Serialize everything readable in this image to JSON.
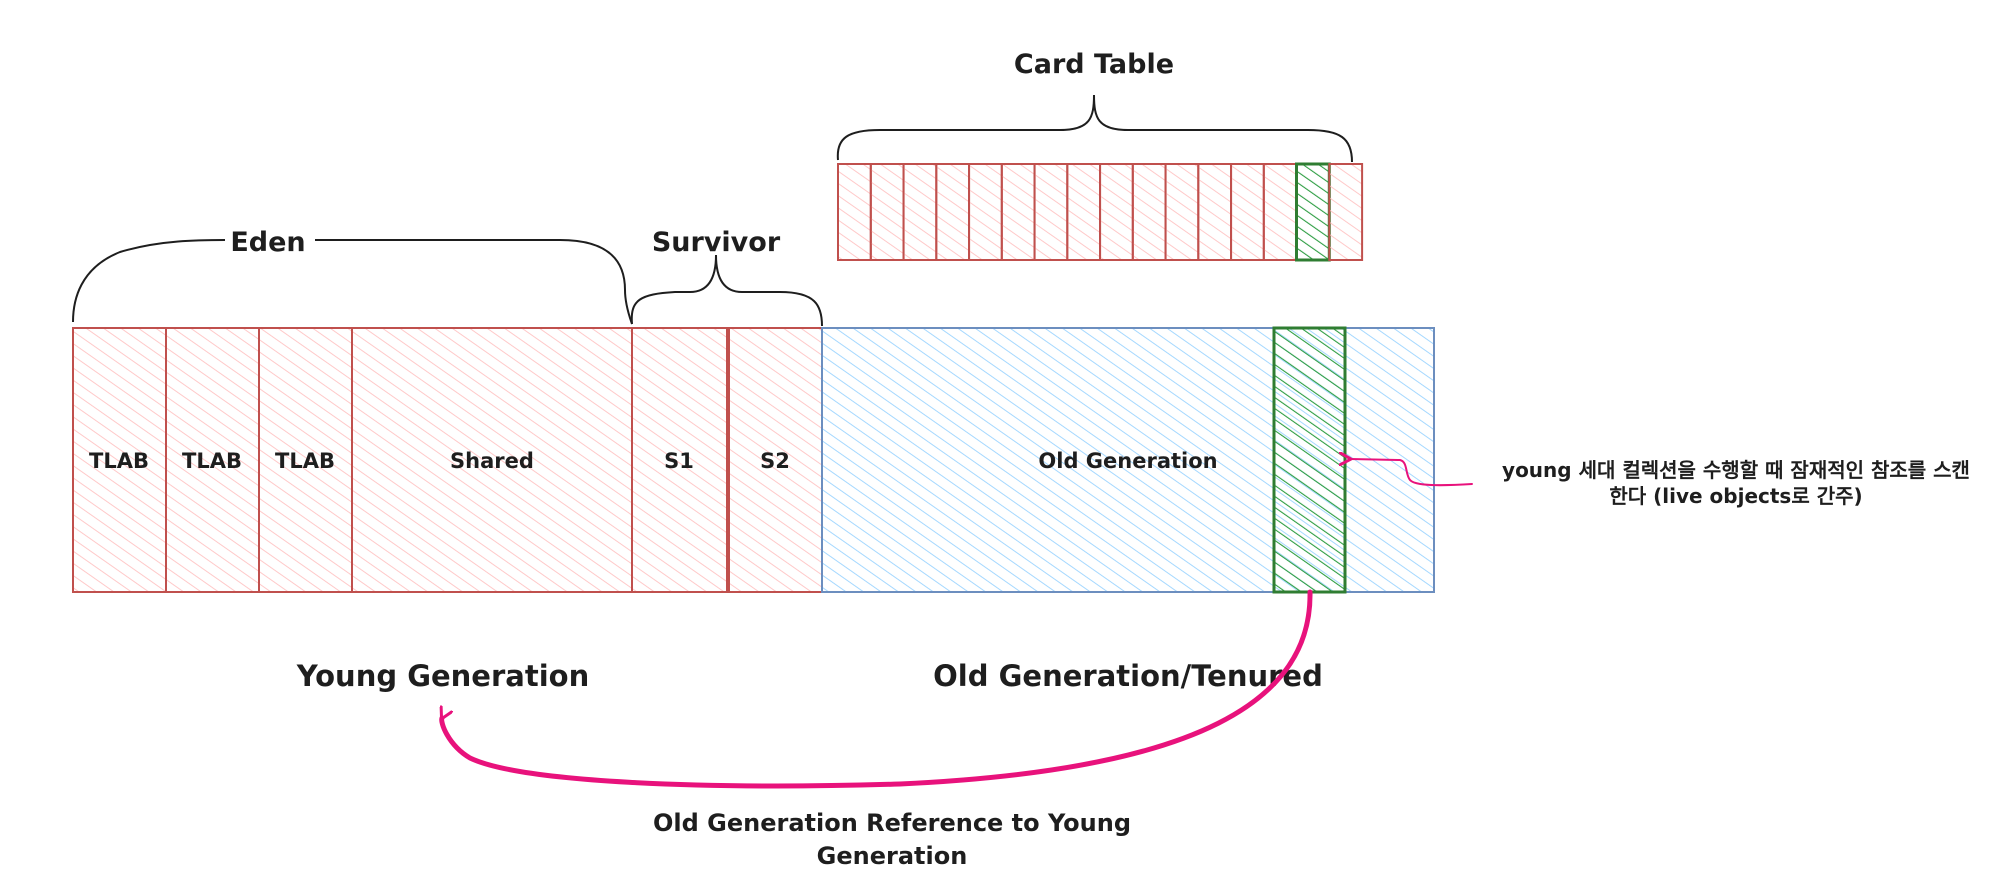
{
  "diagram": {
    "card_table": {
      "label": "Card Table",
      "card_count": 16,
      "dirty_card_index": 14
    },
    "eden": {
      "label": "Eden",
      "regions": [
        "TLAB",
        "TLAB",
        "TLAB",
        "Shared"
      ]
    },
    "survivor": {
      "label": "Survivor",
      "regions": [
        "S1",
        "S2"
      ]
    },
    "old_generation": {
      "label": "Old Generation"
    },
    "captions": {
      "young": "Young Generation",
      "old": "Old Generation/Tenured"
    },
    "scan_note": {
      "line1": "young 세대 컬렉션을 수행할 때 잠재적인 참조를 스캔",
      "line2": "한다 (live objects로 간주)"
    },
    "reference_note": {
      "line1": "Old Generation Reference to Young",
      "line2": "Generation"
    },
    "colors": {
      "young_stroke": "#c0504d",
      "young_hatch": "#ffc9c9",
      "old_stroke": "#6c8ebf",
      "old_hatch": "#a5d8ff",
      "dirty_stroke": "#2f7d32",
      "dirty_hatch": "#2f9e44",
      "arrow": "#e8127c",
      "text": "#1e1e1e"
    }
  }
}
